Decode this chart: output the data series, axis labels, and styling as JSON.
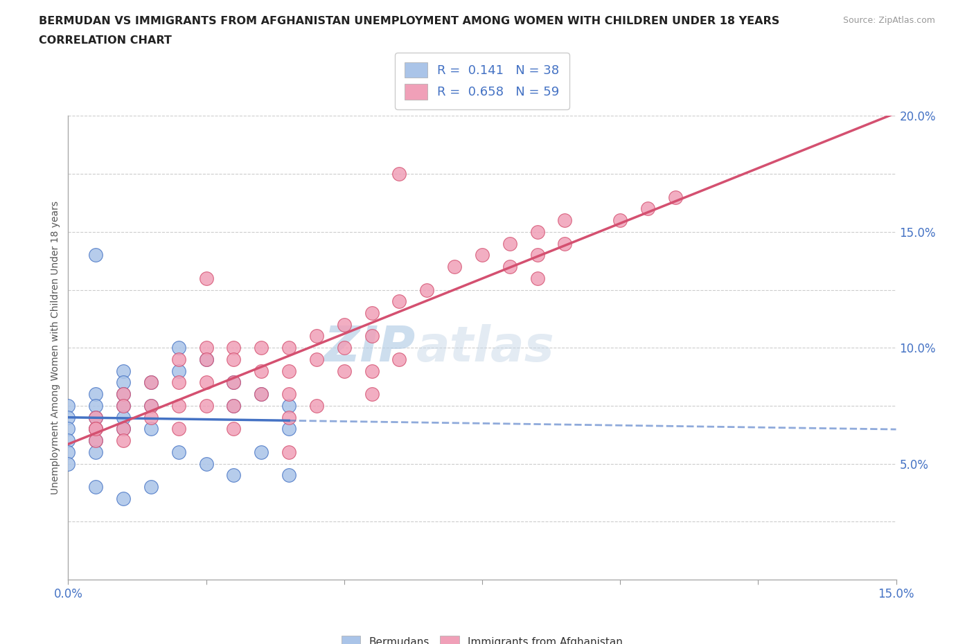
{
  "title_line1": "BERMUDAN VS IMMIGRANTS FROM AFGHANISTAN UNEMPLOYMENT AMONG WOMEN WITH CHILDREN UNDER 18 YEARS",
  "title_line2": "CORRELATION CHART",
  "source": "Source: ZipAtlas.com",
  "ylabel_label": "Unemployment Among Women with Children Under 18 years",
  "xlim": [
    0.0,
    0.15
  ],
  "ylim": [
    0.0,
    0.2
  ],
  "xticks": [
    0.0,
    0.025,
    0.05,
    0.075,
    0.1,
    0.125,
    0.15
  ],
  "yticks": [
    0.0,
    0.025,
    0.05,
    0.075,
    0.1,
    0.125,
    0.15,
    0.175,
    0.2
  ],
  "legend_R1": "0.141",
  "legend_N1": "38",
  "legend_R2": "0.658",
  "legend_N2": "59",
  "watermark_zip": "ZIP",
  "watermark_atlas": "atlas",
  "blue_color": "#aac4e8",
  "blue_line_color": "#4472c4",
  "pink_color": "#f0a0b8",
  "pink_line_color": "#d45070",
  "label_color": "#4472c4",
  "bermuda_x": [
    0.0,
    0.0,
    0.0,
    0.0,
    0.0,
    0.0,
    0.005,
    0.005,
    0.005,
    0.005,
    0.005,
    0.005,
    0.01,
    0.01,
    0.01,
    0.01,
    0.01,
    0.01,
    0.015,
    0.015,
    0.015,
    0.02,
    0.02,
    0.025,
    0.03,
    0.03,
    0.035,
    0.04,
    0.04,
    0.005,
    0.01,
    0.015,
    0.02,
    0.025,
    0.03,
    0.035,
    0.04,
    0.005
  ],
  "bermuda_y": [
    0.075,
    0.07,
    0.065,
    0.06,
    0.055,
    0.05,
    0.08,
    0.075,
    0.07,
    0.065,
    0.06,
    0.055,
    0.09,
    0.085,
    0.08,
    0.075,
    0.07,
    0.065,
    0.085,
    0.075,
    0.065,
    0.1,
    0.09,
    0.095,
    0.085,
    0.075,
    0.08,
    0.075,
    0.065,
    0.04,
    0.035,
    0.04,
    0.055,
    0.05,
    0.045,
    0.055,
    0.045,
    0.14
  ],
  "afghan_x": [
    0.005,
    0.005,
    0.005,
    0.01,
    0.01,
    0.01,
    0.015,
    0.015,
    0.02,
    0.02,
    0.02,
    0.025,
    0.025,
    0.025,
    0.025,
    0.03,
    0.03,
    0.03,
    0.03,
    0.035,
    0.035,
    0.035,
    0.04,
    0.04,
    0.04,
    0.045,
    0.045,
    0.05,
    0.05,
    0.055,
    0.055,
    0.055,
    0.06,
    0.06,
    0.065,
    0.07,
    0.075,
    0.08,
    0.08,
    0.085,
    0.085,
    0.085,
    0.09,
    0.09,
    0.1,
    0.105,
    0.11,
    0.005,
    0.01,
    0.015,
    0.02,
    0.025,
    0.03,
    0.04,
    0.04,
    0.045,
    0.05,
    0.055,
    0.06
  ],
  "afghan_y": [
    0.07,
    0.065,
    0.06,
    0.08,
    0.075,
    0.065,
    0.085,
    0.075,
    0.095,
    0.085,
    0.075,
    0.1,
    0.095,
    0.085,
    0.075,
    0.1,
    0.095,
    0.085,
    0.075,
    0.1,
    0.09,
    0.08,
    0.1,
    0.09,
    0.08,
    0.105,
    0.095,
    0.11,
    0.1,
    0.115,
    0.105,
    0.09,
    0.12,
    0.095,
    0.125,
    0.135,
    0.14,
    0.145,
    0.135,
    0.15,
    0.14,
    0.13,
    0.155,
    0.145,
    0.155,
    0.16,
    0.165,
    0.065,
    0.06,
    0.07,
    0.065,
    0.13,
    0.065,
    0.055,
    0.07,
    0.075,
    0.09,
    0.08,
    0.175
  ]
}
